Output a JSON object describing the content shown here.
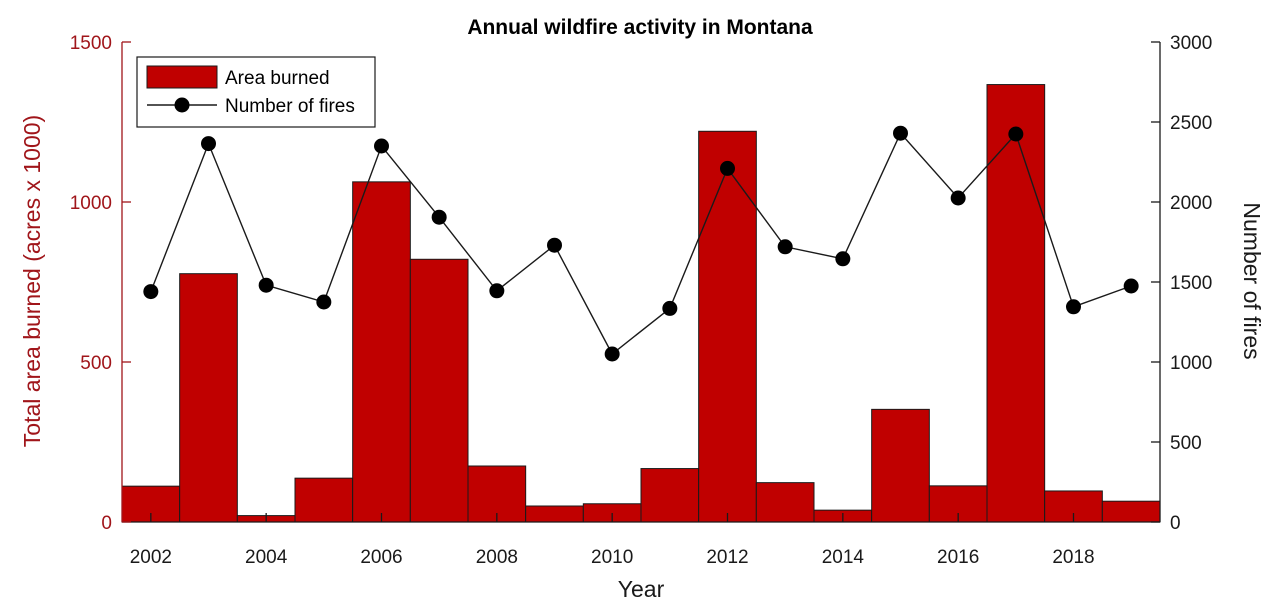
{
  "chart_data": {
    "type": "bar+line",
    "title": "Annual wildfire activity in Montana",
    "xlabel": "Year",
    "ylabel_left": "Total area burned (acres x 1000)",
    "ylabel_right": "Number of fires",
    "ylim_left": [
      0,
      1500
    ],
    "ylim_right": [
      0,
      3000
    ],
    "xlim": [
      2001.5,
      2019.5
    ],
    "x_ticks": [
      2002,
      2004,
      2006,
      2008,
      2010,
      2012,
      2014,
      2016,
      2018
    ],
    "y_ticks_left": [
      0,
      500,
      1000,
      1500
    ],
    "y_ticks_right": [
      0,
      500,
      1000,
      1500,
      2000,
      2500,
      3000
    ],
    "grid": false,
    "legend_position": "top-left",
    "colors": {
      "bar": "#c00000",
      "bar_edge": "#1a1a1a",
      "line": "#1a1a1a",
      "left_axis": "#a0151a",
      "right_axis": "#1a1a1a"
    },
    "years": [
      2002,
      2003,
      2004,
      2005,
      2006,
      2007,
      2008,
      2009,
      2010,
      2011,
      2012,
      2013,
      2014,
      2015,
      2016,
      2017,
      2018,
      2019
    ],
    "series": [
      {
        "name": "Area burned",
        "type": "bar",
        "axis": "left",
        "values": [
          112,
          776,
          20,
          137,
          1063,
          821,
          175,
          50,
          57,
          167,
          1221,
          123,
          37,
          352,
          113,
          1367,
          97,
          65
        ]
      },
      {
        "name": "Number of fires",
        "type": "line",
        "axis": "right",
        "values": [
          1440,
          2365,
          1480,
          1375,
          2350,
          1905,
          1445,
          1730,
          1050,
          1335,
          2210,
          1720,
          1645,
          2430,
          2025,
          2425,
          1345,
          1475
        ]
      }
    ]
  }
}
